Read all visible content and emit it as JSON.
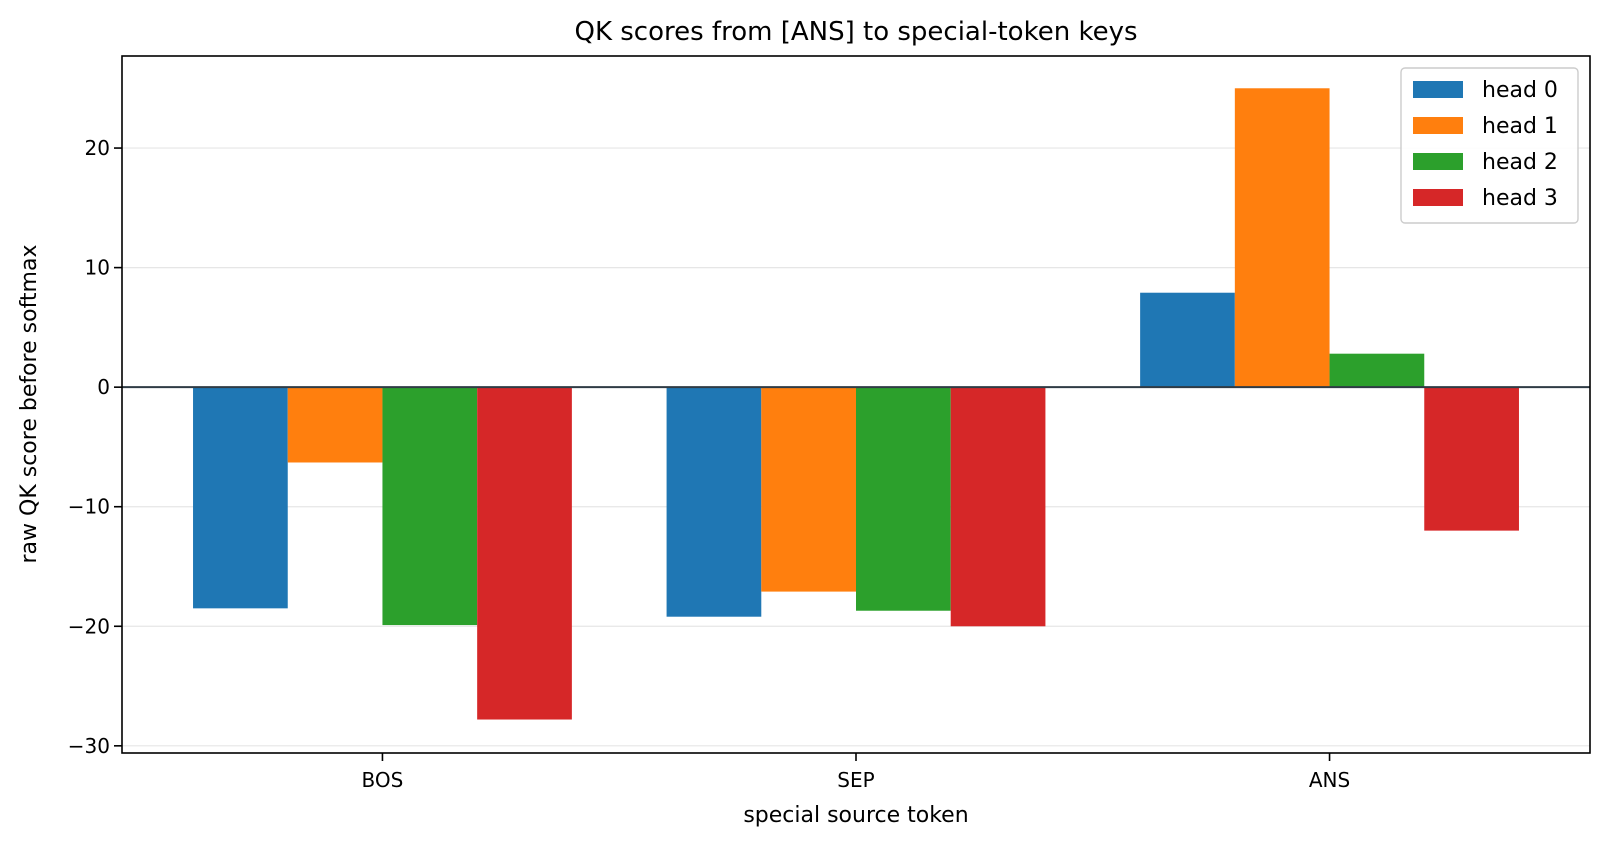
{
  "chart_data": {
    "type": "bar",
    "title": "QK scores from [ANS] to special-token keys",
    "xlabel": "special source token",
    "ylabel": "raw QK score before softmax",
    "categories": [
      "BOS",
      "SEP",
      "ANS"
    ],
    "series": [
      {
        "name": "head 0",
        "color": "#1f77b4",
        "values": [
          -18.5,
          -19.2,
          7.9
        ]
      },
      {
        "name": "head 1",
        "color": "#ff7f0e",
        "values": [
          -6.3,
          -17.1,
          25.0
        ]
      },
      {
        "name": "head 2",
        "color": "#2ca02c",
        "values": [
          -19.9,
          -18.7,
          2.8
        ]
      },
      {
        "name": "head 3",
        "color": "#d62728",
        "values": [
          -27.8,
          -20.0,
          -12.0
        ]
      }
    ],
    "ylim": [
      -30.6,
      27.7
    ],
    "yticks": [
      -30,
      -20,
      -10,
      0,
      10,
      20
    ],
    "ytick_labels": [
      "−30",
      "−20",
      "−10",
      "0",
      "10",
      "20"
    ],
    "grid": "y",
    "legend_position": "top-right"
  }
}
